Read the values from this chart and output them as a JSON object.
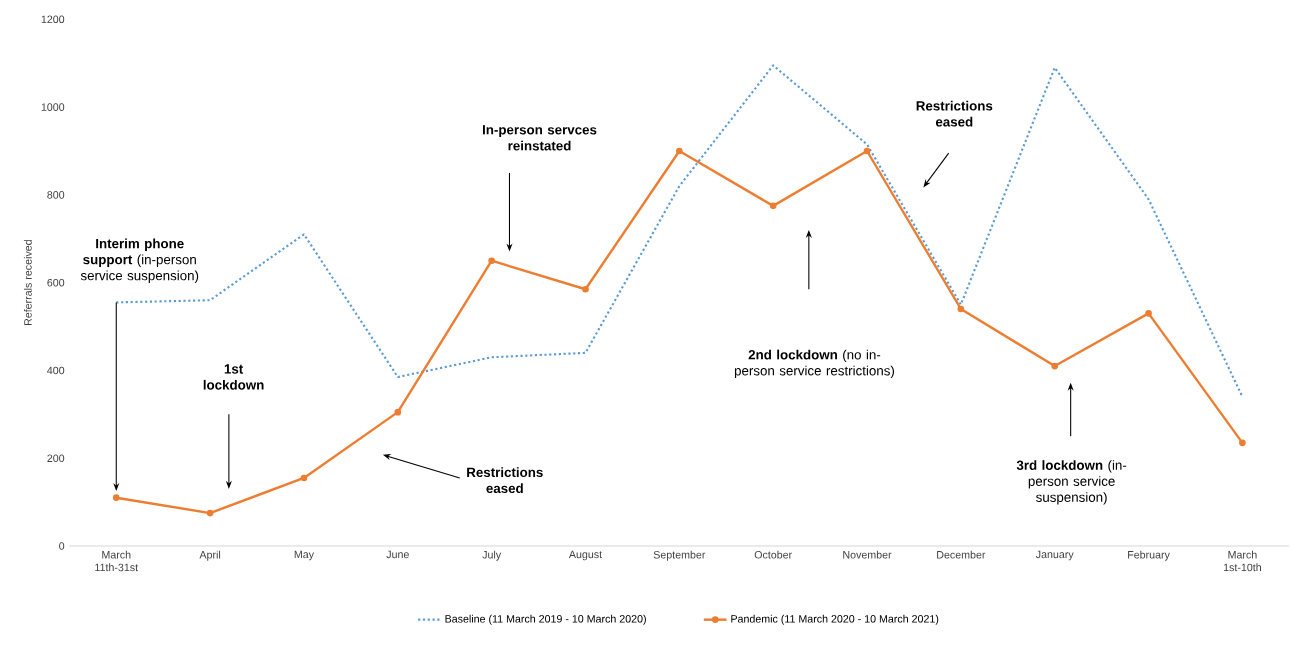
{
  "chart_data": {
    "type": "line",
    "ylabel": "Referrals received",
    "categories": [
      "March 11th-31st",
      "April",
      "May",
      "June",
      "July",
      "August",
      "September",
      "October",
      "November",
      "December",
      "January",
      "February",
      "March 1st-10th"
    ],
    "series": [
      {
        "name": "Baseline (11 March 2019 - 10 March 2020)",
        "color": "#5b9bd5",
        "line_style": "dotted",
        "marker": "none",
        "values": [
          555,
          560,
          710,
          385,
          430,
          440,
          820,
          1095,
          915,
          550,
          1090,
          790,
          340
        ]
      },
      {
        "name": "Pandemic (11 March 2020 - 10 March 2021)",
        "color": "#ed7d31",
        "line_style": "solid",
        "marker": "circle",
        "values": [
          110,
          75,
          155,
          305,
          650,
          585,
          900,
          775,
          900,
          540,
          410,
          530,
          235
        ]
      }
    ],
    "ylim": [
      0,
      1200
    ],
    "yticks": [
      0,
      200,
      400,
      600,
      800,
      1000,
      1200
    ],
    "grid": false,
    "legend": "bottom",
    "annotations": [
      "**Interim phone support** (in-person service suspension)",
      "**1st lockdown**",
      "**Restrictions eased**",
      "**In-person servces reinstated**",
      "**2nd lockdown** (no in-person service restrictions)",
      "**Restrictions eased**",
      "**3rd lockdown** (in-person service suspension)"
    ]
  }
}
